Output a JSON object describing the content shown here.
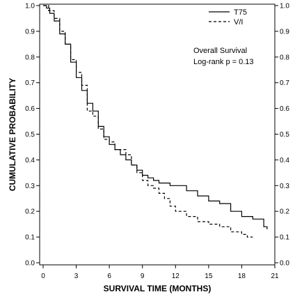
{
  "chart_data": {
    "type": "line",
    "xlabel": "SURVIVAL TIME (MONTHS)",
    "ylabel": "CUMULATIVE PROBABILITY",
    "xlim": [
      0,
      21
    ],
    "ylim": [
      0,
      1
    ],
    "x_ticks": [
      "0",
      "3",
      "6",
      "9",
      "12",
      "15",
      "18",
      "21"
    ],
    "y_ticks": [
      "0.0",
      "0.1",
      "0.2",
      "0.3",
      "0.4",
      "0.5",
      "0.6",
      "0.7",
      "0.8",
      "0.9",
      "1.0"
    ],
    "grid": false,
    "legend_placement": "top-right",
    "annotation": {
      "line1": "Overall Survival",
      "line2": "Log-rank  p = 0.13"
    },
    "series": [
      {
        "name": "T75",
        "line_style": "solid",
        "color": "#000000",
        "x": [
          0,
          0.3,
          0.6,
          1.0,
          1.5,
          2.0,
          2.5,
          3.0,
          3.5,
          4.0,
          4.5,
          5.0,
          5.5,
          6.0,
          6.5,
          7.0,
          7.5,
          8.0,
          8.5,
          9.0,
          9.5,
          10.0,
          10.5,
          11.0,
          11.5,
          12.0,
          13.0,
          14.0,
          15.0,
          16.0,
          17.0,
          18.0,
          19.0,
          20.0,
          20.3
        ],
        "y": [
          1.0,
          0.99,
          0.97,
          0.94,
          0.89,
          0.85,
          0.78,
          0.72,
          0.67,
          0.62,
          0.59,
          0.53,
          0.49,
          0.46,
          0.44,
          0.42,
          0.4,
          0.38,
          0.36,
          0.34,
          0.33,
          0.32,
          0.31,
          0.31,
          0.3,
          0.3,
          0.28,
          0.26,
          0.24,
          0.23,
          0.2,
          0.18,
          0.17,
          0.14,
          0.13
        ]
      },
      {
        "name": "V/I",
        "line_style": "dashed",
        "color": "#000000",
        "x": [
          0,
          0.5,
          1.0,
          1.5,
          2.0,
          2.5,
          3.0,
          3.5,
          4.0,
          4.5,
          5.0,
          5.5,
          6.0,
          6.5,
          7.0,
          7.5,
          8.0,
          8.5,
          9.0,
          9.5,
          10.0,
          10.5,
          11.0,
          11.5,
          12.0,
          13.0,
          14.0,
          15.0,
          16.0,
          17.0,
          18.0,
          18.5,
          19.0
        ],
        "y": [
          1.0,
          0.98,
          0.95,
          0.9,
          0.85,
          0.79,
          0.74,
          0.69,
          0.59,
          0.57,
          0.52,
          0.48,
          0.47,
          0.44,
          0.44,
          0.42,
          0.38,
          0.35,
          0.32,
          0.3,
          0.29,
          0.27,
          0.25,
          0.22,
          0.2,
          0.18,
          0.16,
          0.15,
          0.14,
          0.12,
          0.11,
          0.1,
          0.1
        ]
      }
    ]
  }
}
